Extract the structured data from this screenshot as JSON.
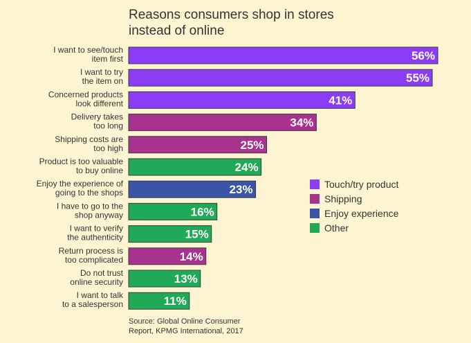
{
  "chart_data": {
    "type": "bar",
    "orientation": "horizontal",
    "title": [
      "Reasons consumers shop in stores",
      "instead of online"
    ],
    "categories": [
      [
        "I want to see/touch",
        "item first"
      ],
      [
        "I want to try",
        "the item on"
      ],
      [
        "Concerned products",
        "look different"
      ],
      [
        "Delivery takes",
        "too long"
      ],
      [
        "Shipping costs are",
        "too high"
      ],
      [
        "Product is too valuable",
        "to buy online"
      ],
      [
        "Enjoy the experience of",
        "going to the shops"
      ],
      [
        "I have to go to the",
        "shop anyway"
      ],
      [
        "I want to verify",
        "the authenticity"
      ],
      [
        "Return process is",
        "too complicated"
      ],
      [
        "Do not trust",
        "online security"
      ],
      [
        "I want to talk",
        "to a salesperson"
      ]
    ],
    "values": [
      56,
      55,
      41,
      34,
      25,
      24,
      23,
      16,
      15,
      14,
      13,
      11
    ],
    "value_labels": [
      "56%",
      "55%",
      "41%",
      "34%",
      "25%",
      "24%",
      "23%",
      "16%",
      "15%",
      "14%",
      "13%",
      "11%"
    ],
    "groups": [
      "touch",
      "touch",
      "touch",
      "shipping",
      "shipping",
      "other",
      "enjoy",
      "other",
      "other",
      "shipping",
      "other",
      "other"
    ],
    "legend": [
      {
        "key": "touch",
        "label": "Touch/try product",
        "color": "#8a3df5"
      },
      {
        "key": "shipping",
        "label": "Shipping",
        "color": "#a8338e"
      },
      {
        "key": "enjoy",
        "label": "Enjoy experience",
        "color": "#3a55a8"
      },
      {
        "key": "other",
        "label": "Other",
        "color": "#20aa55"
      }
    ],
    "legend_position": "right",
    "grid": false,
    "xlim": [
      0,
      56
    ]
  },
  "source": [
    "Source: Global Online Consumer",
    "Report, KPMG International, 2017"
  ]
}
